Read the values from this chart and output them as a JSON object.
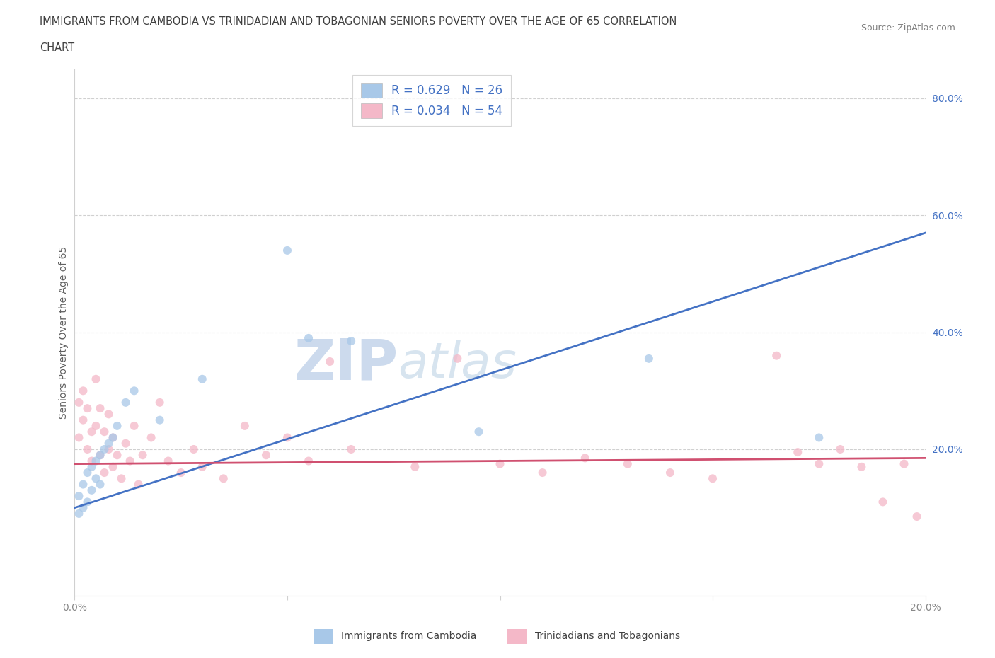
{
  "title_line1": "IMMIGRANTS FROM CAMBODIA VS TRINIDADIAN AND TOBAGONIAN SENIORS POVERTY OVER THE AGE OF 65 CORRELATION",
  "title_line2": "CHART",
  "source_text": "Source: ZipAtlas.com",
  "ylabel": "Seniors Poverty Over the Age of 65",
  "xlim": [
    0.0,
    0.2
  ],
  "ylim": [
    -0.05,
    0.85
  ],
  "xticks": [
    0.0,
    0.05,
    0.1,
    0.15,
    0.2
  ],
  "xtick_labels": [
    "0.0%",
    "",
    "",
    "",
    "20.0%"
  ],
  "yticks_right": [
    0.2,
    0.4,
    0.6,
    0.8
  ],
  "ytick_labels_right": [
    "20.0%",
    "40.0%",
    "60.0%",
    "80.0%"
  ],
  "grid_yticks": [
    0.2,
    0.4,
    0.6,
    0.8
  ],
  "R_cambodia": 0.629,
  "N_cambodia": 26,
  "R_tt": 0.034,
  "N_tt": 54,
  "legend_label_cambodia": "Immigrants from Cambodia",
  "legend_label_tt": "Trinidadians and Tobagonians",
  "color_cambodia": "#a8c8e8",
  "color_tt": "#f4b8c8",
  "trendline_color_cambodia": "#4472c4",
  "trendline_color_tt": "#d05070",
  "background_color": "#ffffff",
  "watermark_color": "#cdd8e8",
  "grid_color": "#d0d0d0",
  "title_color": "#404040",
  "source_color": "#808080",
  "axis_label_color": "#606060",
  "tick_color": "#888888",
  "right_tick_color": "#4472c4",
  "legend_text_color": "#4472c4",
  "cambodia_x": [
    0.001,
    0.001,
    0.002,
    0.002,
    0.003,
    0.003,
    0.004,
    0.004,
    0.005,
    0.005,
    0.006,
    0.006,
    0.007,
    0.008,
    0.009,
    0.01,
    0.012,
    0.014,
    0.02,
    0.03,
    0.05,
    0.055,
    0.065,
    0.095,
    0.135,
    0.175
  ],
  "cambodia_y": [
    0.09,
    0.12,
    0.1,
    0.14,
    0.11,
    0.16,
    0.13,
    0.17,
    0.15,
    0.18,
    0.14,
    0.19,
    0.2,
    0.21,
    0.22,
    0.24,
    0.28,
    0.3,
    0.25,
    0.32,
    0.54,
    0.39,
    0.385,
    0.23,
    0.355,
    0.22
  ],
  "tt_x": [
    0.001,
    0.001,
    0.002,
    0.002,
    0.003,
    0.003,
    0.004,
    0.004,
    0.005,
    0.005,
    0.006,
    0.006,
    0.007,
    0.007,
    0.008,
    0.008,
    0.009,
    0.009,
    0.01,
    0.011,
    0.012,
    0.013,
    0.014,
    0.015,
    0.016,
    0.018,
    0.02,
    0.022,
    0.025,
    0.028,
    0.03,
    0.035,
    0.04,
    0.045,
    0.05,
    0.055,
    0.06,
    0.065,
    0.08,
    0.09,
    0.1,
    0.11,
    0.12,
    0.13,
    0.14,
    0.15,
    0.165,
    0.17,
    0.175,
    0.18,
    0.185,
    0.19,
    0.195,
    0.198
  ],
  "tt_y": [
    0.22,
    0.28,
    0.25,
    0.3,
    0.2,
    0.27,
    0.23,
    0.18,
    0.24,
    0.32,
    0.19,
    0.27,
    0.16,
    0.23,
    0.2,
    0.26,
    0.17,
    0.22,
    0.19,
    0.15,
    0.21,
    0.18,
    0.24,
    0.14,
    0.19,
    0.22,
    0.28,
    0.18,
    0.16,
    0.2,
    0.17,
    0.15,
    0.24,
    0.19,
    0.22,
    0.18,
    0.35,
    0.2,
    0.17,
    0.355,
    0.175,
    0.16,
    0.185,
    0.175,
    0.16,
    0.15,
    0.36,
    0.195,
    0.175,
    0.2,
    0.17,
    0.11,
    0.175,
    0.085
  ],
  "trendline_blue_x0": 0.0,
  "trendline_blue_y0": 0.1,
  "trendline_blue_x1": 0.2,
  "trendline_blue_y1": 0.57,
  "trendline_pink_x0": 0.0,
  "trendline_pink_y0": 0.175,
  "trendline_pink_x1": 0.2,
  "trendline_pink_y1": 0.185
}
